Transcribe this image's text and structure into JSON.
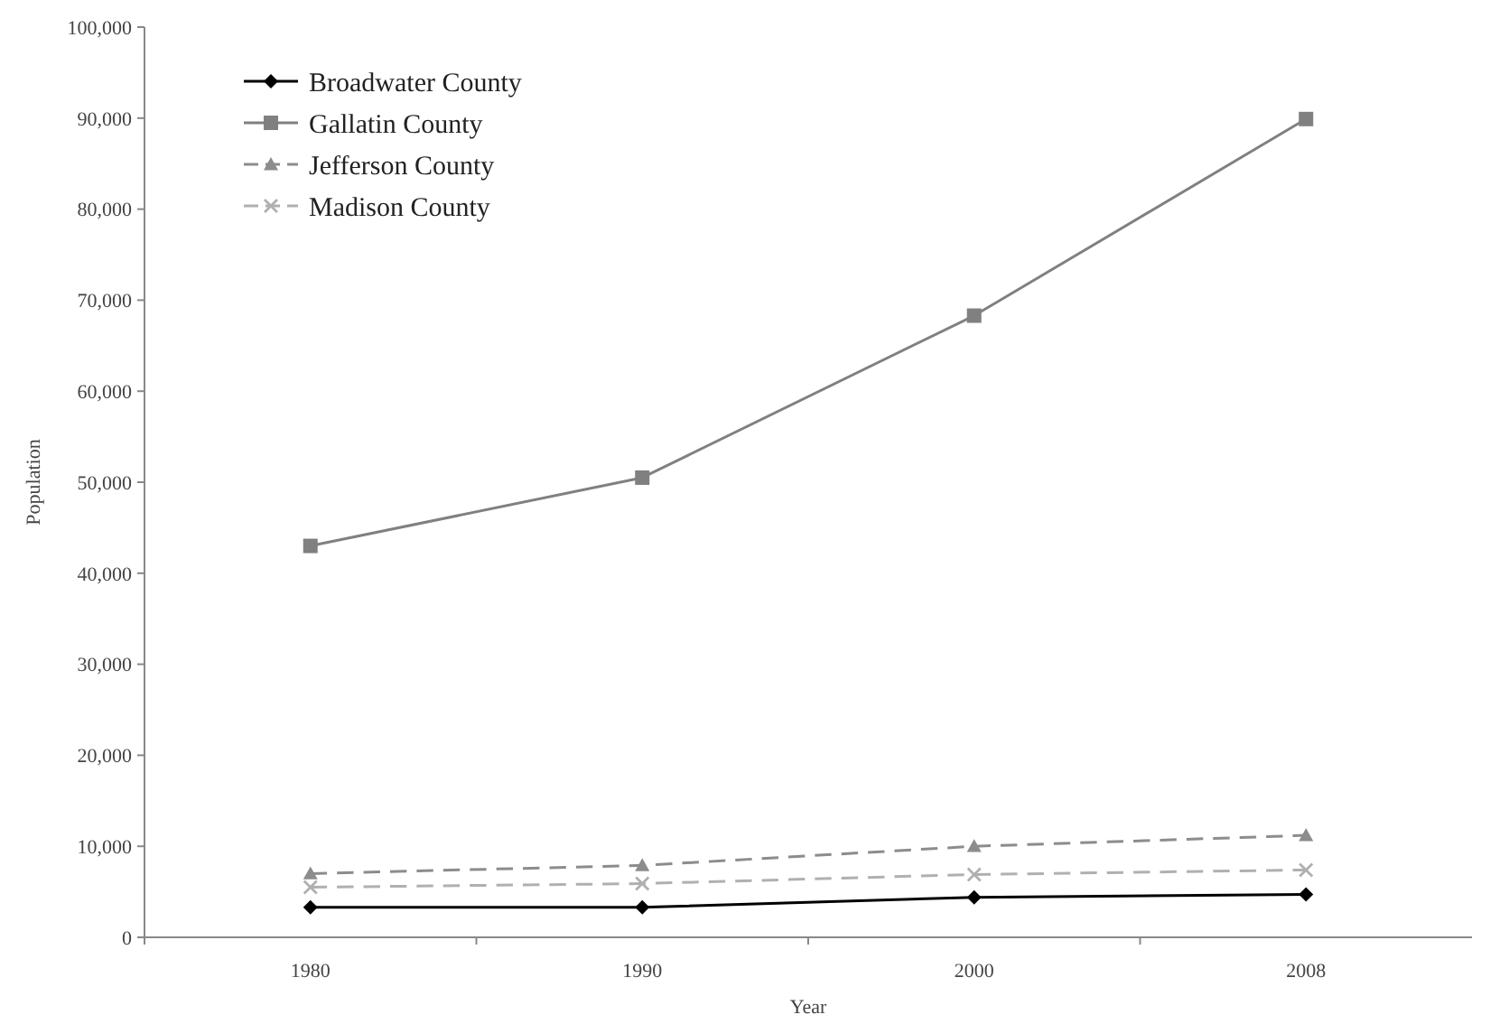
{
  "chart_data": {
    "type": "line",
    "xlabel": "Year",
    "ylabel": "Population",
    "categories": [
      "1980",
      "1990",
      "2000",
      "2008"
    ],
    "ylim": [
      0,
      100000
    ],
    "yticks": [
      {
        "value": 0,
        "label": "0"
      },
      {
        "value": 10000,
        "label": "10,000"
      },
      {
        "value": 20000,
        "label": "20,000"
      },
      {
        "value": 30000,
        "label": "30,000"
      },
      {
        "value": 40000,
        "label": "40,000"
      },
      {
        "value": 50000,
        "label": "50,000"
      },
      {
        "value": 60000,
        "label": "60,000"
      },
      {
        "value": 70000,
        "label": "70,000"
      },
      {
        "value": 80000,
        "label": "80,000"
      },
      {
        "value": 90000,
        "label": "90,000"
      },
      {
        "value": 100000,
        "label": "100,000"
      }
    ],
    "grid": false,
    "legend": "top left",
    "series": [
      {
        "name": "Broadwater County",
        "color": "#000000",
        "marker": "diamond",
        "line_style": "solid",
        "values": [
          3300,
          3300,
          4400,
          4700
        ]
      },
      {
        "name": "Gallatin County",
        "color": "#808080",
        "marker": "square",
        "line_style": "solid",
        "values": [
          43000,
          50500,
          68300,
          89900
        ]
      },
      {
        "name": "Jefferson County",
        "color": "#8c8c8c",
        "marker": "triangle",
        "line_style": "dashed",
        "values": [
          7000,
          7900,
          10000,
          11200
        ]
      },
      {
        "name": "Madison County",
        "color": "#b0b0b0",
        "marker": "cross",
        "line_style": "dashed",
        "values": [
          5500,
          5900,
          6900,
          7400
        ]
      }
    ]
  }
}
